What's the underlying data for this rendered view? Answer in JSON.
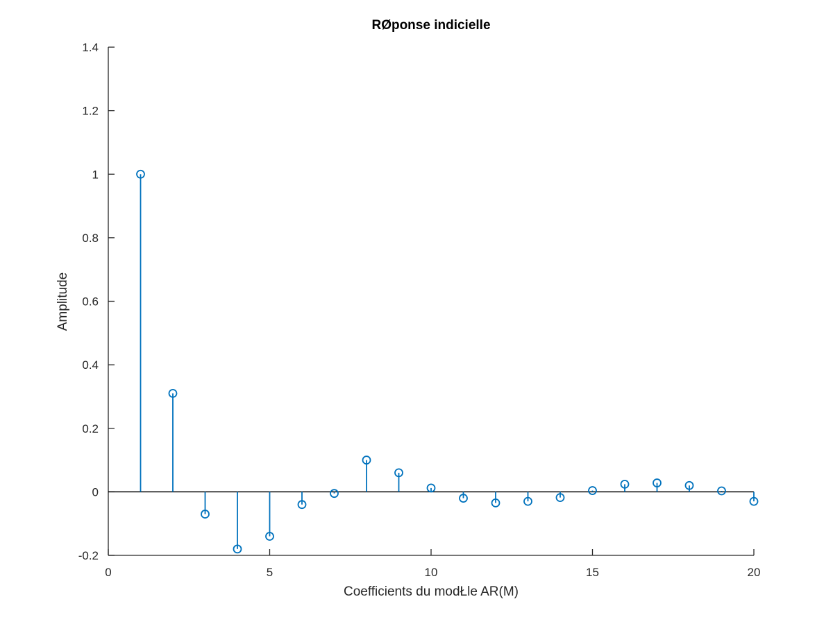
{
  "chart_data": {
    "type": "stem",
    "title": "RØponse indicielle",
    "xlabel": "Coefficients du modŁle AR(M)",
    "ylabel": "Amplitude",
    "xlim": [
      0,
      20
    ],
    "ylim": [
      -0.2,
      1.4
    ],
    "xticks": [
      0,
      5,
      10,
      15,
      20
    ],
    "xtick_labels": [
      "0",
      "5",
      "10",
      "15",
      "20"
    ],
    "yticks": [
      -0.2,
      0,
      0.2,
      0.4,
      0.6,
      0.8,
      1.0,
      1.2,
      1.4
    ],
    "ytick_labels": [
      "-0.2",
      "0",
      "0.2",
      "0.4",
      "0.6",
      "0.8",
      "1",
      "1.2",
      "1.4"
    ],
    "grid": false,
    "baseline": 0,
    "series": [
      {
        "color": "#0072bd",
        "marker": "circle",
        "x": [
          1,
          2,
          3,
          4,
          5,
          6,
          7,
          8,
          9,
          10,
          11,
          12,
          13,
          14,
          15,
          16,
          17,
          18,
          19,
          20
        ],
        "values": [
          1.0,
          0.31,
          -0.07,
          -0.18,
          -0.14,
          -0.04,
          -0.005,
          0.1,
          0.06,
          0.012,
          -0.02,
          -0.035,
          -0.03,
          -0.018,
          0.004,
          0.024,
          0.028,
          0.02,
          0.003,
          -0.03
        ]
      }
    ],
    "axis_color": "#262626",
    "baseline_color": "#000000"
  }
}
